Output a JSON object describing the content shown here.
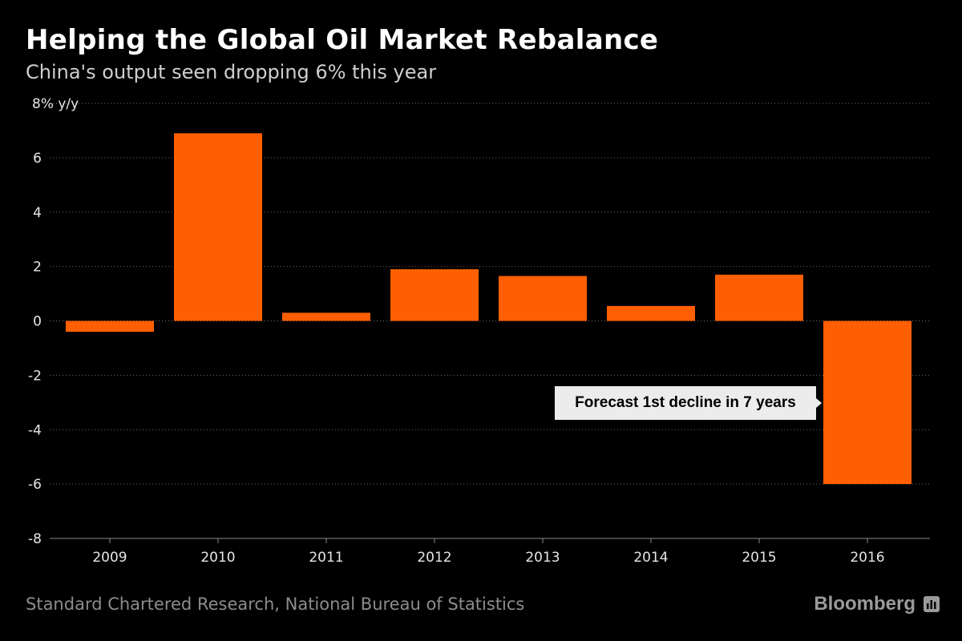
{
  "chart_data": {
    "type": "bar",
    "title": "Helping the Global Oil Market Rebalance",
    "subtitle": "China's output seen dropping 6% this year",
    "ylabel": "8% y/y",
    "xlabel": "",
    "categories": [
      "2009",
      "2010",
      "2011",
      "2012",
      "2013",
      "2014",
      "2015",
      "2016"
    ],
    "values": [
      -0.4,
      6.9,
      0.3,
      1.9,
      1.65,
      0.55,
      1.7,
      -6.0
    ],
    "ylim": [
      -8,
      8
    ],
    "yticks": [
      "-8",
      "-6",
      "-4",
      "-2",
      "0",
      "2",
      "4",
      "6"
    ],
    "grid": true,
    "bar_color": "#ff5f00",
    "annotation": {
      "text": "Forecast 1st decline in 7 years",
      "category": "2016"
    },
    "source": "Standard Chartered Research, National Bureau of Statistics",
    "brand": "Bloomberg"
  }
}
